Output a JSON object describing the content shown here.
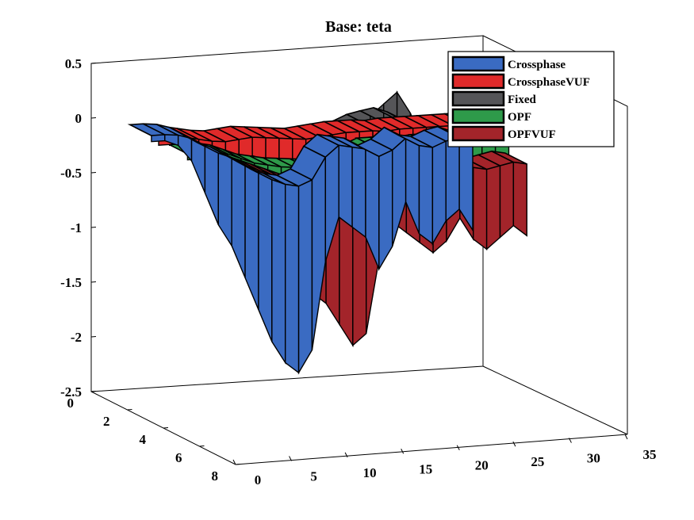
{
  "chart_data": {
    "type": "surface3d",
    "title": "Base: teta",
    "xlabel": "",
    "ylabel": "",
    "zlabel": "",
    "z_ticks": [
      "0.5",
      "0",
      "-0.5",
      "-1",
      "-1.5",
      "-2",
      "-2.5"
    ],
    "x_ticks": [
      "0",
      "5",
      "10",
      "15",
      "20",
      "25",
      "30",
      "35"
    ],
    "y_ticks": [
      "0",
      "2",
      "4",
      "6",
      "8"
    ],
    "xlim": [
      0,
      35
    ],
    "ylim": [
      0,
      8
    ],
    "zlim": [
      -2.5,
      0.5
    ],
    "legend_position": "top-right",
    "series": [
      {
        "name": "Crossphase",
        "color": "#3a6bc2",
        "values": [
          -0.1,
          -0.1,
          -0.15,
          -0.3,
          -0.6,
          -0.9,
          -1.1,
          -1.4,
          -1.7,
          -2.0,
          -2.2,
          -2.3,
          -2.1,
          -1.3,
          -0.9,
          -1.0,
          -1.1,
          -1.4,
          -1.2,
          -0.8,
          -1.1,
          -1.2,
          -1.0,
          -0.9,
          -1.1
        ]
      },
      {
        "name": "CrossphaseVUF",
        "color": "#e02a2a",
        "values": [
          -0.1,
          -0.1,
          -0.1,
          -0.2,
          -0.3,
          -0.35,
          -0.3,
          -0.25,
          -0.3,
          -0.35,
          -0.4,
          -0.45,
          -0.4,
          -0.35,
          -0.3,
          -0.3,
          -0.3,
          -0.35,
          -0.3,
          -0.3,
          -0.3,
          -0.3,
          -0.3,
          -0.3,
          -0.3
        ]
      },
      {
        "name": "Fixed",
        "color": "#555558",
        "values": [
          -0.05,
          -0.05,
          -0.05,
          -0.1,
          -0.2,
          -0.3,
          -0.4,
          -0.5,
          -0.55,
          -0.6,
          -0.65,
          -0.7,
          -0.6,
          -0.3,
          -0.1,
          0.1,
          0.2,
          0.3,
          0.1,
          -0.2,
          -0.3,
          -0.3,
          -0.3,
          -0.2,
          -0.2
        ]
      },
      {
        "name": "OPF",
        "color": "#2e9a4a",
        "values": [
          -0.1,
          -0.1,
          -0.1,
          -0.2,
          -0.4,
          -0.6,
          -0.7,
          -0.8,
          -0.85,
          -0.9,
          -0.95,
          -1.0,
          -0.9,
          -0.5,
          -0.3,
          -0.3,
          -0.3,
          -0.35,
          -0.3,
          -0.3,
          -0.3,
          -0.3,
          -0.3,
          -0.3,
          -0.3
        ]
      },
      {
        "name": "OPFVUF",
        "color": "#a3242a",
        "values": [
          -0.1,
          -0.1,
          -0.15,
          -0.3,
          -0.5,
          -0.7,
          -0.9,
          -1.1,
          -1.3,
          -1.4,
          -1.6,
          -1.8,
          -1.7,
          -1.0,
          -0.7,
          -0.8,
          -0.9,
          -1.0,
          -0.9,
          -0.7,
          -0.9,
          -1.0,
          -0.9,
          -0.8,
          -0.9
        ]
      }
    ]
  }
}
